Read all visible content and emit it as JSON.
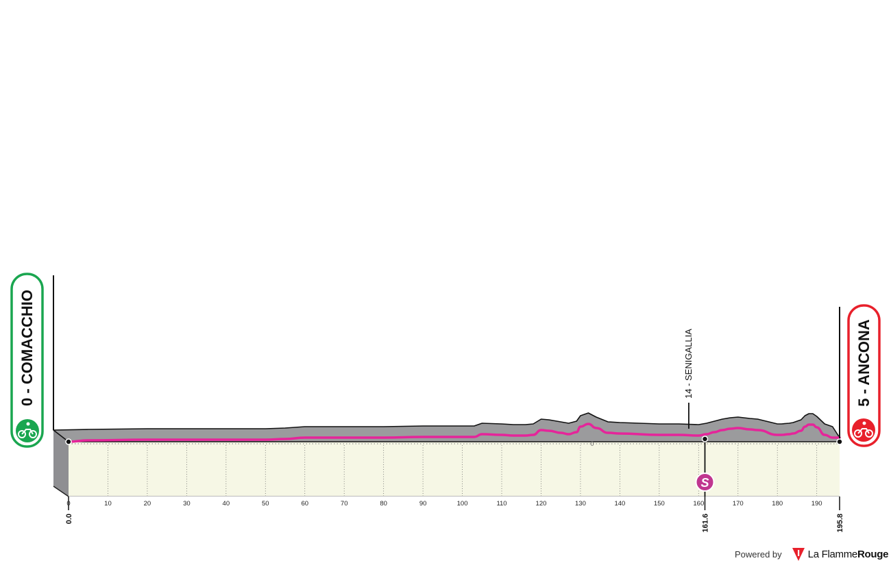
{
  "chart_data": {
    "type": "area",
    "xlabel": "",
    "ylabel": "",
    "xlim": [
      0,
      195.8
    ],
    "x_ticks": [
      "0",
      "10",
      "20",
      "30",
      "40",
      "50",
      "60",
      "70",
      "80",
      "90",
      "100",
      "110",
      "120",
      "130",
      "140",
      "150",
      "160",
      "170",
      "180",
      "190"
    ],
    "km_markers": [
      {
        "km": 0.0,
        "label": "0.0"
      },
      {
        "km": 161.6,
        "label": "161.6"
      },
      {
        "km": 195.8,
        "label": "195.8"
      }
    ],
    "start": {
      "label": "0 - COMACCHIO",
      "km": 0,
      "color": "#1aa650"
    },
    "finish": {
      "label": "5 - ANCONA",
      "km": 195.8,
      "color": "#e8202b"
    },
    "waypoints": [
      {
        "label": "14 - SENIGALLIA",
        "km": 157.5
      }
    ],
    "sprints": [
      {
        "symbol": "S",
        "km": 161.6,
        "color": "#c0368f"
      }
    ],
    "baseline_label": "0",
    "route_color": "#e5259a",
    "terrain_color": "#9b9b9d",
    "ground_color": "#f6f7e5",
    "profile": {
      "x": [
        0,
        5,
        20,
        30,
        40,
        50,
        55,
        60,
        70,
        80,
        90,
        100,
        103,
        105,
        110,
        113,
        116,
        118,
        120,
        122,
        125,
        127,
        129,
        130,
        132,
        134,
        137,
        140,
        150,
        155,
        160,
        162,
        164,
        166,
        168,
        170,
        173,
        175,
        180,
        181,
        183,
        184,
        186,
        187,
        188,
        189,
        190,
        192,
        194,
        195.8
      ],
      "y": [
        0,
        2,
        3,
        3,
        3,
        3,
        4,
        6,
        6,
        6,
        7,
        7,
        7,
        11,
        10,
        9,
        9,
        10,
        17,
        16,
        13,
        11,
        14,
        22,
        26,
        20,
        13,
        12,
        10,
        10,
        9,
        11,
        14,
        17,
        19,
        20,
        18,
        17,
        10,
        10,
        11,
        12,
        16,
        22,
        25,
        25,
        21,
        10,
        6,
        6
      ]
    }
  },
  "footer": {
    "powered_by": "Powered by",
    "brand_regular": "La Flamme",
    "brand_bold": "Rouge"
  }
}
